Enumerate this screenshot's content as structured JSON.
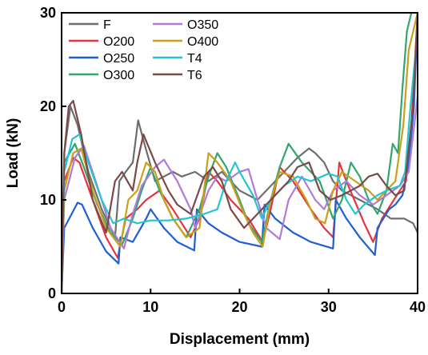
{
  "chart_data": {
    "type": "line",
    "title": "",
    "xlabel": "Displacement (mm)",
    "ylabel": "Load (kN)",
    "xlim": [
      0,
      40
    ],
    "ylim": [
      0,
      30
    ],
    "xticks": [
      "0",
      "10",
      "20",
      "30",
      "40"
    ],
    "yticks": [
      "0",
      "10",
      "20",
      "30"
    ],
    "grid": false,
    "legend_position": "top-left",
    "series": [
      {
        "name": "F",
        "color": "#6e6e6e",
        "x": [
          0,
          0.3,
          1,
          1.8,
          3,
          4.5,
          6,
          6.5,
          7.2,
          8,
          8.6,
          9.3,
          10.5,
          11.5,
          12.5,
          13.5,
          15,
          16.5,
          18,
          20,
          22,
          24,
          25.5,
          26.5,
          27.8,
          28.5,
          29.5,
          30.5,
          31.5,
          32.5,
          33.5,
          34.5,
          35.5,
          37,
          38.5,
          39.5,
          40
        ],
        "y": [
          0,
          15,
          20,
          18,
          13,
          9,
          6,
          12,
          13,
          14,
          18.5,
          16,
          12,
          12.5,
          13,
          12.5,
          13,
          12,
          13,
          11,
          10,
          12,
          13.5,
          14.5,
          15.5,
          15,
          14,
          12,
          11,
          10.5,
          10,
          9.5,
          9,
          8,
          8,
          7.5,
          6.5
        ]
      },
      {
        "name": "O200",
        "color": "#e8323c",
        "x": [
          0,
          0.3,
          1.3,
          2,
          3.5,
          5,
          6.3,
          7.2,
          8.5,
          9.5,
          11,
          12.5,
          14.5,
          15.5,
          16.5,
          17.5,
          19,
          21,
          22.6,
          23.5,
          24.5,
          26,
          28,
          29.5,
          30.5,
          31.2,
          32,
          34,
          35,
          36,
          37,
          38,
          38.7,
          39.3,
          40
        ],
        "y": [
          0,
          12,
          14.5,
          14,
          10,
          6,
          3.8,
          8,
          9,
          10,
          11,
          9,
          6,
          8,
          13,
          12,
          10,
          8,
          5.5,
          9,
          13.5,
          12,
          9,
          7,
          6,
          14,
          12,
          7.5,
          5.5,
          8,
          9.5,
          11,
          12,
          18,
          30
        ]
      },
      {
        "name": "O250",
        "color": "#1f5fd1",
        "x": [
          0,
          0.3,
          1.8,
          2.3,
          3.5,
          5,
          6.4,
          6.6,
          8,
          9.5,
          10,
          11.5,
          13,
          14.9,
          15.2,
          16.5,
          18,
          20,
          22.5,
          22.8,
          24,
          26,
          28,
          30.5,
          30.8,
          32,
          33.5,
          35.2,
          35.5,
          36.8,
          37.5,
          38.3,
          39,
          39.6,
          40
        ],
        "y": [
          0,
          7,
          9.7,
          9.5,
          7,
          4.5,
          3.2,
          6,
          5.5,
          8,
          9,
          7,
          5.5,
          4.6,
          9,
          7.5,
          6.5,
          5.5,
          5,
          9.5,
          8,
          6.5,
          5.5,
          4.8,
          10,
          8,
          6,
          4.1,
          7,
          9,
          9.5,
          10.5,
          14,
          20,
          30
        ]
      },
      {
        "name": "O300",
        "color": "#33a56f",
        "x": [
          0,
          0.3,
          1.5,
          2.5,
          4,
          5.5,
          6.8,
          8,
          9,
          10,
          11,
          12.5,
          14,
          15.5,
          16.5,
          17.5,
          18.5,
          20,
          21,
          22.5,
          23.5,
          24.5,
          25.5,
          27,
          29,
          30.5,
          31.5,
          32.5,
          33.5,
          34.5,
          35.5,
          36.5,
          37.2,
          37.8,
          38.3,
          38.8,
          39.3,
          40
        ],
        "y": [
          0,
          14,
          16,
          13.5,
          9.5,
          6.5,
          5.2,
          8,
          11,
          13.5,
          11,
          8,
          6,
          9,
          12.5,
          15,
          13.5,
          10,
          7.5,
          5.5,
          10,
          13.5,
          16,
          14,
          12,
          8,
          10,
          14,
          12.5,
          10,
          8.5,
          11,
          16,
          15,
          22,
          28,
          30,
          30
        ]
      },
      {
        "name": "O350",
        "color": "#b07ad9",
        "x": [
          0,
          0.3,
          1.5,
          2.5,
          4,
          5.5,
          7,
          8,
          9,
          10.5,
          11.5,
          13,
          14.5,
          15,
          16.5,
          17.5,
          18.5,
          20,
          21,
          22,
          23,
          24.5,
          25.5,
          27,
          28.5,
          29.5,
          30.5,
          32,
          33.5,
          35,
          36.5,
          38,
          39,
          40
        ],
        "y": [
          0,
          10,
          14.5,
          15.8,
          11.5,
          7,
          4.8,
          8.5,
          11.5,
          13.5,
          14.3,
          12,
          9,
          7,
          11,
          12.5,
          12,
          13,
          13.3,
          10,
          7,
          5.8,
          10,
          12.5,
          10,
          9,
          11,
          12,
          10.5,
          9.5,
          10.5,
          11.5,
          13,
          21
        ]
      },
      {
        "name": "O400",
        "color": "#c9a01b",
        "x": [
          0,
          0.3,
          1.3,
          2.2,
          3.5,
          5,
          6.6,
          7.5,
          8.5,
          9.5,
          10.5,
          11.5,
          12.5,
          14,
          15.5,
          16.5,
          17.5,
          19,
          20.5,
          21.5,
          22.6,
          23.5,
          24.5,
          26,
          27.5,
          28.5,
          29.6,
          30.5,
          31.5,
          33,
          34.5,
          35.5,
          36.5,
          37.5,
          38.4,
          39,
          40
        ],
        "y": [
          0,
          11,
          15,
          15.5,
          11,
          7,
          5,
          10,
          11,
          14,
          13,
          10,
          8,
          6,
          7,
          15,
          14,
          12,
          8.5,
          6.5,
          5,
          10,
          13,
          12.5,
          10,
          8,
          7.5,
          11,
          13,
          12,
          11,
          10,
          11,
          12,
          18,
          26,
          30
        ]
      },
      {
        "name": "T4",
        "color": "#21c6d0",
        "x": [
          0,
          0.3,
          1.2,
          2,
          3,
          4.5,
          5.8,
          7,
          8.5,
          10,
          12,
          14,
          16,
          17.5,
          18.5,
          19.5,
          20,
          21.5,
          22.5,
          23.5,
          25,
          26.5,
          28,
          30,
          31,
          32,
          33,
          34,
          35.5,
          36.5,
          38,
          38.6,
          39.2,
          40
        ],
        "y": [
          0,
          13,
          16.5,
          17,
          14,
          10,
          7.5,
          8,
          7.5,
          7.8,
          7.8,
          8,
          8.5,
          9,
          12,
          14,
          13,
          10.5,
          8,
          10,
          11.5,
          12.5,
          12,
          12.8,
          12.5,
          10,
          8.5,
          9.5,
          10.5,
          11,
          11.5,
          13,
          20,
          28
        ]
      },
      {
        "name": "T6",
        "color": "#7a4a4a",
        "x": [
          0,
          0.3,
          0.8,
          1.3,
          2.2,
          3.5,
          5,
          6,
          6.8,
          8,
          8.5,
          9.2,
          10.5,
          12,
          13,
          14.5,
          16,
          17,
          18,
          19,
          20.5,
          22,
          23.5,
          24.5,
          25.5,
          26.5,
          27.8,
          29,
          30.2,
          31.5,
          32.5,
          33.5,
          34.5,
          35.5,
          36.5,
          37.5,
          38.5,
          39.5,
          40
        ],
        "y": [
          0,
          15,
          20,
          20.6,
          17,
          10,
          6.5,
          12,
          13,
          11,
          14,
          17,
          14,
          11,
          9.5,
          8.5,
          12.5,
          13.5,
          12,
          9,
          7,
          8.5,
          10,
          11,
          12,
          13.5,
          14,
          11,
          10,
          10.5,
          11,
          11.5,
          12.5,
          12.8,
          11.5,
          10.5,
          11,
          20,
          30
        ]
      }
    ]
  }
}
